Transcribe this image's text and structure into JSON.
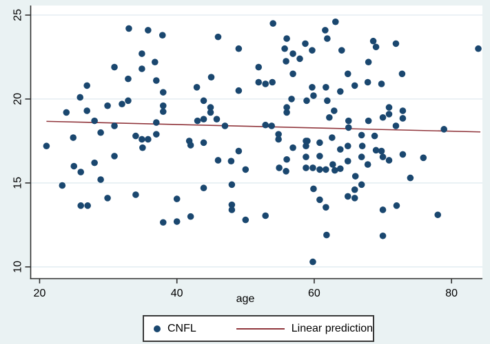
{
  "figure": {
    "background_color": "#eaf2f3",
    "plot_background_color": "#ffffff",
    "axis_color": "#2f2f2f",
    "grid_color": "#dfeaef",
    "text_color": "#000000"
  },
  "chart_data": {
    "type": "scatter",
    "title": "",
    "xlabel": "age",
    "ylabel": "",
    "xlim": [
      18.7,
      84.5
    ],
    "ylim": [
      9.3,
      25.57
    ],
    "x_ticks": [
      20,
      40,
      60,
      80
    ],
    "y_ticks": [
      10,
      15,
      20,
      25
    ],
    "grid": "horizontal",
    "legend_position": "bottom",
    "series": [
      {
        "name": "CNFL",
        "type": "scatter",
        "color": "#1a476f",
        "marker_radius": 4.8,
        "points": [
          [
            21.0,
            17.2
          ],
          [
            23.3,
            14.85
          ],
          [
            23.9,
            19.2
          ],
          [
            24.9,
            17.7
          ],
          [
            25.0,
            16.0
          ],
          [
            25.9,
            20.1
          ],
          [
            26.0,
            15.65
          ],
          [
            26.0,
            13.65
          ],
          [
            26.9,
            20.8
          ],
          [
            26.9,
            19.3
          ],
          [
            27.0,
            13.65
          ],
          [
            28.0,
            18.7
          ],
          [
            28.0,
            16.2
          ],
          [
            28.9,
            18.0
          ],
          [
            28.9,
            15.2
          ],
          [
            29.9,
            19.6
          ],
          [
            29.9,
            14.1
          ],
          [
            30.9,
            21.9
          ],
          [
            30.9,
            18.4
          ],
          [
            30.9,
            16.6
          ],
          [
            32.0,
            19.7
          ],
          [
            32.9,
            21.2
          ],
          [
            32.9,
            19.9
          ],
          [
            33.0,
            24.2
          ],
          [
            34.0,
            17.8
          ],
          [
            34.0,
            14.3
          ],
          [
            34.9,
            22.7
          ],
          [
            34.9,
            21.8
          ],
          [
            34.9,
            17.6
          ],
          [
            35.0,
            17.1
          ],
          [
            35.8,
            24.1
          ],
          [
            35.8,
            17.6
          ],
          [
            36.8,
            22.2
          ],
          [
            37.0,
            21.1
          ],
          [
            37.0,
            18.6
          ],
          [
            37.0,
            17.9
          ],
          [
            37.9,
            23.8
          ],
          [
            38.0,
            20.4
          ],
          [
            38.0,
            19.6
          ],
          [
            38.0,
            19.25
          ],
          [
            38.0,
            12.65
          ],
          [
            40.0,
            14.05
          ],
          [
            40.0,
            12.7
          ],
          [
            41.8,
            17.5
          ],
          [
            42.0,
            17.25
          ],
          [
            42.0,
            13.0
          ],
          [
            42.9,
            20.7
          ],
          [
            43.0,
            18.7
          ],
          [
            43.9,
            19.9
          ],
          [
            43.9,
            18.8
          ],
          [
            43.9,
            17.4
          ],
          [
            43.9,
            14.7
          ],
          [
            44.9,
            19.5
          ],
          [
            44.9,
            19.2
          ],
          [
            45.0,
            21.3
          ],
          [
            45.8,
            18.8
          ],
          [
            46.0,
            23.7
          ],
          [
            46.0,
            16.35
          ],
          [
            47.0,
            18.4
          ],
          [
            47.9,
            16.3
          ],
          [
            48.0,
            14.9
          ],
          [
            48.0,
            13.7
          ],
          [
            48.0,
            13.4
          ],
          [
            49.0,
            23.0
          ],
          [
            49.0,
            20.5
          ],
          [
            49.0,
            16.9
          ],
          [
            50.0,
            15.8
          ],
          [
            50.0,
            12.8
          ],
          [
            51.9,
            21.9
          ],
          [
            51.9,
            21.0
          ],
          [
            52.9,
            20.9
          ],
          [
            52.9,
            18.45
          ],
          [
            52.9,
            13.05
          ],
          [
            53.8,
            18.4
          ],
          [
            53.9,
            21.0
          ],
          [
            54.0,
            24.5
          ],
          [
            54.8,
            17.9
          ],
          [
            54.8,
            17.6
          ],
          [
            54.9,
            15.9
          ],
          [
            55.7,
            23.0
          ],
          [
            55.9,
            22.25
          ],
          [
            55.9,
            15.7
          ],
          [
            56.0,
            23.6
          ],
          [
            56.0,
            19.5
          ],
          [
            56.0,
            19.2
          ],
          [
            56.0,
            16.4
          ],
          [
            56.7,
            20.0
          ],
          [
            56.9,
            22.7
          ],
          [
            56.9,
            21.5
          ],
          [
            56.9,
            17.1
          ],
          [
            57.9,
            22.4
          ],
          [
            58.7,
            23.3
          ],
          [
            58.8,
            17.5
          ],
          [
            58.8,
            17.2
          ],
          [
            58.8,
            16.55
          ],
          [
            58.8,
            15.9
          ],
          [
            58.9,
            19.9
          ],
          [
            59.0,
            17.5
          ],
          [
            59.7,
            22.9
          ],
          [
            59.7,
            20.7
          ],
          [
            59.8,
            15.9
          ],
          [
            59.8,
            10.3
          ],
          [
            59.9,
            20.2
          ],
          [
            59.9,
            14.65
          ],
          [
            60.8,
            17.4
          ],
          [
            60.8,
            16.6
          ],
          [
            60.8,
            15.8
          ],
          [
            60.8,
            14.0
          ],
          [
            61.6,
            24.1
          ],
          [
            61.7,
            20.7
          ],
          [
            61.7,
            15.8
          ],
          [
            61.7,
            13.55
          ],
          [
            61.8,
            11.9
          ],
          [
            61.9,
            23.6
          ],
          [
            61.9,
            19.9
          ],
          [
            62.2,
            18.9
          ],
          [
            62.6,
            17.7
          ],
          [
            62.7,
            16.1
          ],
          [
            62.9,
            19.3
          ],
          [
            63.0,
            15.75
          ],
          [
            63.1,
            24.6
          ],
          [
            63.8,
            20.45
          ],
          [
            63.8,
            17.0
          ],
          [
            63.8,
            15.85
          ],
          [
            64.0,
            22.9
          ],
          [
            64.9,
            21.5
          ],
          [
            64.9,
            17.2
          ],
          [
            64.9,
            16.3
          ],
          [
            64.9,
            14.2
          ],
          [
            65.0,
            18.7
          ],
          [
            65.0,
            18.3
          ],
          [
            65.9,
            20.8
          ],
          [
            65.9,
            14.6
          ],
          [
            65.9,
            14.1
          ],
          [
            66.0,
            15.4
          ],
          [
            66.9,
            17.85
          ],
          [
            66.9,
            16.55
          ],
          [
            66.9,
            14.9
          ],
          [
            67.0,
            17.2
          ],
          [
            67.8,
            21.0
          ],
          [
            67.8,
            16.1
          ],
          [
            67.9,
            22.2
          ],
          [
            67.9,
            18.7
          ],
          [
            68.6,
            23.45
          ],
          [
            68.8,
            17.8
          ],
          [
            69.0,
            23.1
          ],
          [
            69.0,
            16.95
          ],
          [
            69.8,
            20.9
          ],
          [
            69.8,
            16.9
          ],
          [
            70.0,
            18.9
          ],
          [
            70.0,
            16.55
          ],
          [
            70.0,
            13.4
          ],
          [
            70.0,
            11.85
          ],
          [
            70.9,
            19.5
          ],
          [
            70.9,
            19.1
          ],
          [
            70.9,
            16.35
          ],
          [
            71.9,
            23.3
          ],
          [
            71.9,
            18.4
          ],
          [
            72.0,
            13.65
          ],
          [
            72.8,
            21.5
          ],
          [
            72.9,
            19.3
          ],
          [
            72.9,
            18.85
          ],
          [
            72.9,
            16.7
          ],
          [
            74.0,
            15.3
          ],
          [
            75.9,
            16.5
          ],
          [
            78.0,
            13.1
          ],
          [
            78.9,
            18.2
          ],
          [
            83.9,
            23.0
          ]
        ]
      },
      {
        "name": "Linear prediction",
        "type": "line",
        "color": "#90353b",
        "x": [
          21.0,
          84.2
        ],
        "y": [
          18.67,
          18.04
        ]
      }
    ]
  },
  "legend": {
    "items": [
      {
        "label": "CNFL",
        "marker": "circle",
        "color": "#1a476f"
      },
      {
        "label": "Linear prediction",
        "marker": "line",
        "color": "#90353b"
      }
    ]
  }
}
